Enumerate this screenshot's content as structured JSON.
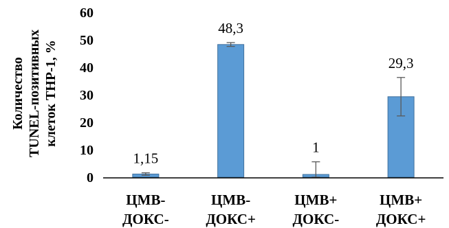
{
  "chart_data": {
    "type": "bar",
    "categories": [
      [
        "ЦМВ-",
        "ДОКС-"
      ],
      [
        "ЦМВ-",
        "ДОКС+"
      ],
      [
        "ЦМВ+",
        "ДОКС-"
      ],
      [
        "ЦМВ+",
        "ДОКС+"
      ]
    ],
    "values": [
      1.15,
      48.3,
      1,
      29.3
    ],
    "data_labels": [
      "1,15",
      "48,3",
      "1",
      "29,3"
    ],
    "error_bars": [
      {
        "low": 0.7,
        "high": 1.6
      },
      {
        "low": 47.6,
        "high": 49.0
      },
      {
        "low": 0.0,
        "high": 5.6
      },
      {
        "low": 22.3,
        "high": 36.3
      }
    ],
    "ylabel_lines": [
      "Количество",
      "TUNEL-позитивных",
      "клеток THP-1, %"
    ],
    "ylim": [
      0,
      60
    ],
    "yticks": [
      "0",
      "10",
      "20",
      "30",
      "40",
      "50",
      "60"
    ],
    "grid": false,
    "colors": {
      "bar": "#5B9BD5",
      "bar_edge": "#41719C",
      "error_bar": "#595959",
      "axis": "#000000"
    }
  }
}
